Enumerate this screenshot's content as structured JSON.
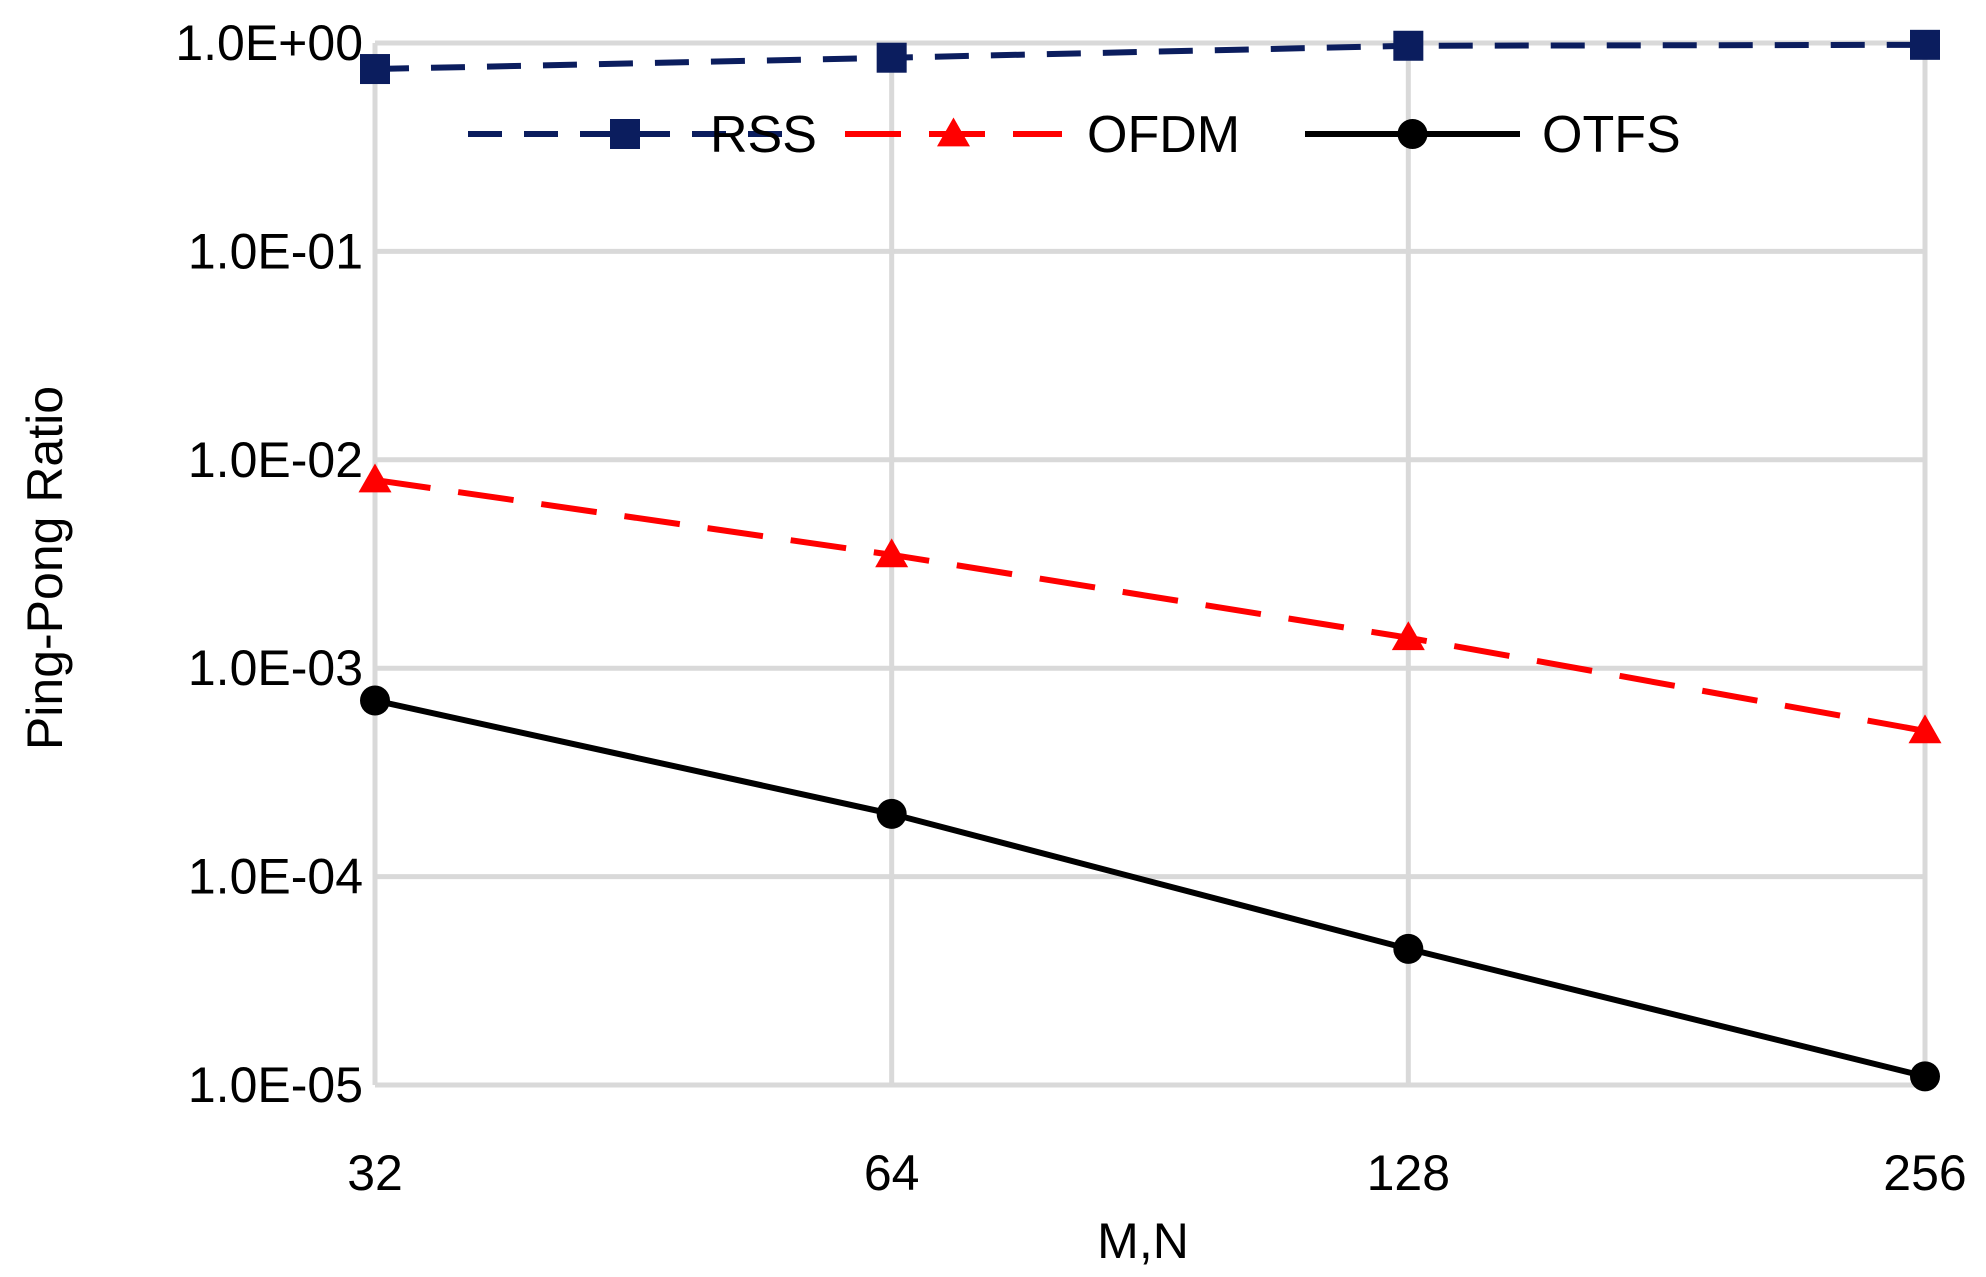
{
  "chart_data": {
    "type": "line",
    "title": "",
    "xlabel": "M,N",
    "ylabel": "Ping-Pong Ratio",
    "x": [
      32,
      64,
      128,
      256
    ],
    "x_tick_labels": [
      "32",
      "64",
      "128",
      "256"
    ],
    "y_scale": "log",
    "ylim": [
      1e-05,
      1
    ],
    "y_tick_labels": [
      "1.0E+00",
      "1.0E-01",
      "1.0E-02",
      "1.0E-03",
      "1.0E-04",
      "1.0E-05"
    ],
    "y_tick_values": [
      1,
      0.1,
      0.01,
      0.001,
      0.0001,
      1e-05
    ],
    "grid": true,
    "legend_position": "top",
    "series": [
      {
        "name": "RSS",
        "values": [
          0.75,
          0.85,
          0.97,
          0.98
        ],
        "color": "#0b1d5e",
        "line_style": "dashed",
        "marker": "square"
      },
      {
        "name": "OFDM",
        "values": [
          0.008,
          0.0035,
          0.0014,
          0.0005
        ],
        "color": "#ff0000",
        "line_style": "long-dashed",
        "marker": "triangle"
      },
      {
        "name": "OTFS",
        "values": [
          0.0007,
          0.0002,
          4.5e-05,
          1.1e-05
        ],
        "color": "#000000",
        "line_style": "solid",
        "marker": "circle"
      }
    ]
  }
}
